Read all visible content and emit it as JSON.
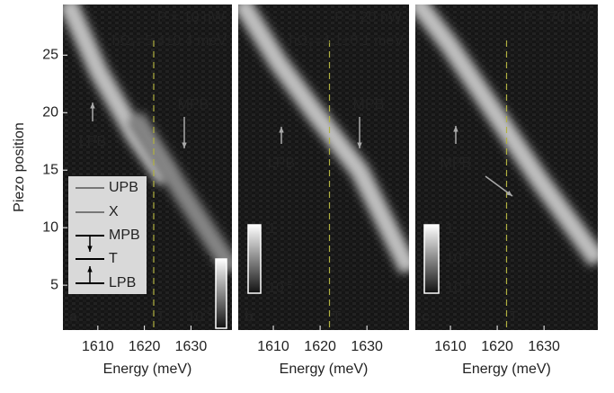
{
  "chart_data": [
    {
      "type": "heatmap",
      "label": "a",
      "power": "P = 10 nW",
      "splitting": [
        "ħΩ",
        "T",
        "=5.4±0.4 meV"
      ],
      "xlabel": "Energy (meV)",
      "ylabel": "Piezo position",
      "xlim": [
        1602.5,
        1638.8
      ],
      "xticks": [
        1610,
        1620,
        1630
      ],
      "ylim": [
        1.1,
        29.4
      ],
      "yticks": [
        5,
        10,
        15,
        20,
        25
      ],
      "t_line": {
        "value": 1622,
        "label": "T"
      },
      "annotations": [
        "LPB",
        "MPB"
      ],
      "legend": [
        "UPB",
        "X",
        "MPB",
        "T",
        "LPB"
      ],
      "colorbar": [
        {
          "base": "1"
        },
        {
          "base": "10",
          "exp": "-2"
        }
      ]
    },
    {
      "type": "heatmap",
      "label": "b",
      "power": "P = 20 nW",
      "splitting": [
        "ħΩ",
        "T",
        "=4.1±0.1 meV"
      ],
      "xlabel": "Energy (meV)",
      "xlim": [
        1602.5,
        1639
      ],
      "xticks": [
        1610,
        1620,
        1630
      ],
      "ylim": [
        1.1,
        29.4
      ],
      "t_line": {
        "value": 1622,
        "label": "T"
      },
      "annotations": [
        "LPB",
        "MPB"
      ],
      "colorbar": [
        {
          "base": "1"
        },
        {
          "base": "10",
          "exp": "-2"
        }
      ]
    },
    {
      "type": "heatmap",
      "label": "c",
      "power": "P = 70 nW",
      "xlabel": "Energy (meV)",
      "xlim": [
        1602.5,
        1641.5
      ],
      "xticks": [
        1610,
        1620,
        1630
      ],
      "ylim": [
        1.1,
        29.4
      ],
      "t_line": {
        "value": 1622,
        "label": "T"
      },
      "annotations": [
        "MPB"
      ],
      "colorbar": [
        {
          "base": "1"
        },
        {
          "base": "10",
          "exp": "-2"
        },
        {
          "base": "10",
          "exp": "-4"
        }
      ]
    }
  ]
}
